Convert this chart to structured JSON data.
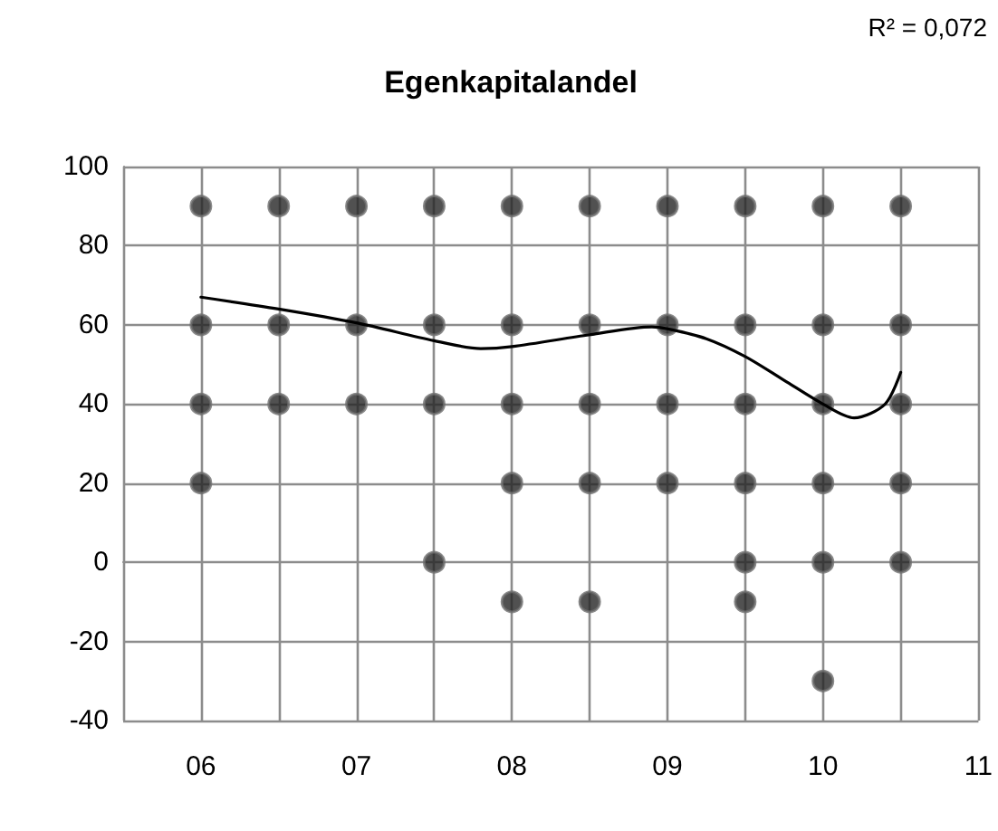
{
  "chart_data": {
    "type": "scatter",
    "title": "Egenkapitalandel",
    "annotations": [
      "R² = 0,072"
    ],
    "series": [
      {
        "marker": "circle",
        "color": "#262626",
        "x": [
          6,
          6,
          6,
          6,
          6.5,
          6.5,
          6.5,
          7,
          7,
          7,
          7.5,
          7.5,
          7.5,
          7.5,
          8,
          8,
          8,
          8,
          8,
          8.5,
          8.5,
          8.5,
          8.5,
          8.5,
          9,
          9,
          9,
          9,
          9.5,
          9.5,
          9.5,
          9.5,
          9.5,
          9.5,
          10,
          10,
          10,
          10,
          10,
          10,
          10.5,
          10.5,
          10.5,
          10.5,
          10.5
        ],
        "values": [
          90,
          60,
          40,
          20,
          90,
          60,
          40,
          90,
          60,
          40,
          90,
          60,
          40,
          0,
          90,
          60,
          40,
          20,
          -10,
          90,
          60,
          40,
          20,
          -10,
          90,
          60,
          40,
          20,
          90,
          60,
          40,
          20,
          0,
          -10,
          90,
          60,
          40,
          20,
          0,
          -30,
          90,
          60,
          40,
          20,
          0
        ]
      },
      {
        "type": "line",
        "marker": "none",
        "line_style": "solid",
        "color": "#000000",
        "x": [
          6,
          6.5,
          7,
          7.5,
          7.8,
          8,
          8.5,
          8.9,
          9,
          9.25,
          9.5,
          9.75,
          10,
          10.2,
          10.4,
          10.5
        ],
        "values": [
          67,
          64,
          60.5,
          56,
          54,
          54.5,
          57.5,
          59.5,
          59,
          56.5,
          52,
          46,
          40,
          36.5,
          40,
          48
        ]
      }
    ],
    "xlim": [
      5.5,
      11
    ],
    "xticks": [
      {
        "value": 5.5,
        "label": null
      },
      {
        "value": 6,
        "label": "06"
      },
      {
        "value": 6.5,
        "label": null
      },
      {
        "value": 7,
        "label": "07"
      },
      {
        "value": 7.5,
        "label": null
      },
      {
        "value": 8,
        "label": "08"
      },
      {
        "value": 8.5,
        "label": null
      },
      {
        "value": 9,
        "label": "09"
      },
      {
        "value": 9.5,
        "label": null
      },
      {
        "value": 10,
        "label": "10"
      },
      {
        "value": 10.5,
        "label": null
      },
      {
        "value": 11,
        "label": "11"
      }
    ],
    "ylim": [
      -40,
      100
    ],
    "yticks": [
      -40,
      -20,
      0,
      20,
      40,
      60,
      80,
      100
    ],
    "grid": true
  }
}
